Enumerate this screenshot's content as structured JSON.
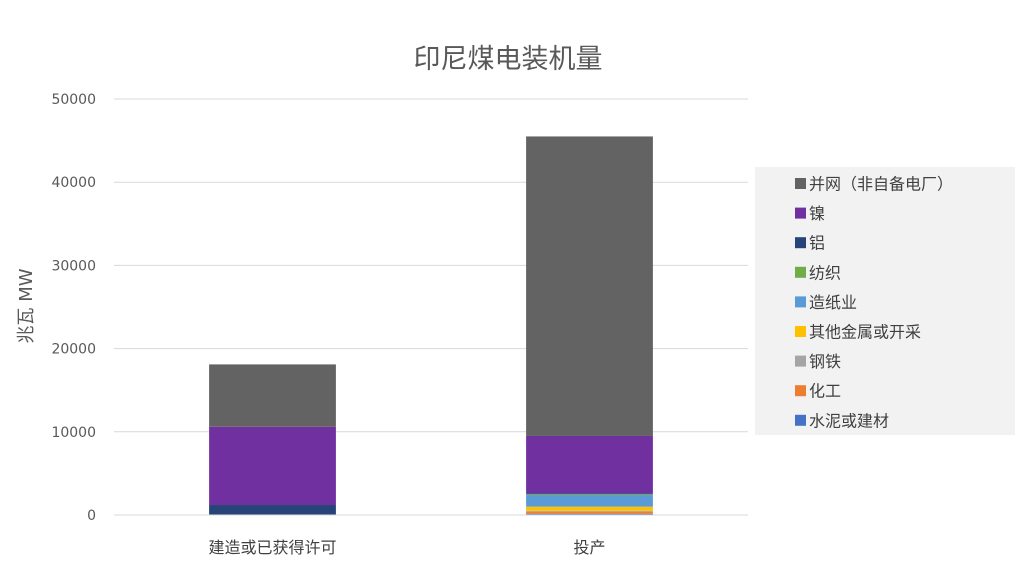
{
  "chart_data": {
    "type": "bar",
    "stacked": true,
    "title": "印尼煤电装机量",
    "ylabel": "兆瓦 MW",
    "xlabel": "",
    "ylim": [
      0,
      50000
    ],
    "yticks": [
      0,
      10000,
      20000,
      30000,
      40000,
      50000
    ],
    "grid": true,
    "legend_position": "right",
    "categories": [
      "建造或已获得许可",
      "投产"
    ],
    "series": [
      {
        "name": "水泥或建材",
        "color": "#4472C4",
        "values": [
          0,
          150
        ]
      },
      {
        "name": "化工",
        "color": "#ED7D31",
        "values": [
          0,
          250
        ]
      },
      {
        "name": "钢铁",
        "color": "#A5A5A5",
        "values": [
          0,
          100
        ]
      },
      {
        "name": "其他金属或开采",
        "color": "#FFC000",
        "values": [
          0,
          500
        ]
      },
      {
        "name": "造纸业",
        "color": "#5B9BD5",
        "values": [
          0,
          1400
        ]
      },
      {
        "name": "纺织",
        "color": "#70AD47",
        "values": [
          0,
          100
        ]
      },
      {
        "name": "铝",
        "color": "#264478",
        "values": [
          1200,
          100
        ]
      },
      {
        "name": "镍",
        "color": "#7030A0",
        "values": [
          9400,
          6900
        ]
      },
      {
        "name": "并网（非自备电厂）",
        "color": "#636363",
        "values": [
          7500,
          36000
        ]
      }
    ]
  }
}
